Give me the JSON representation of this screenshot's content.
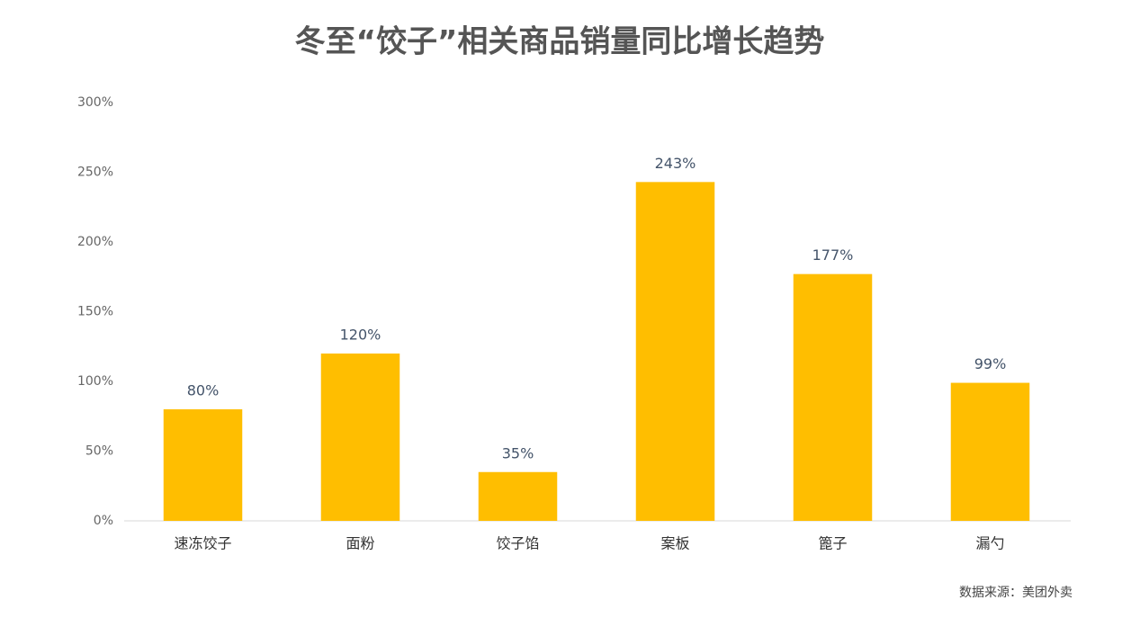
{
  "chart_data": {
    "type": "bar",
    "title": "冬至“饺子”相关商品销量同比增长趋势",
    "categories": [
      "速冻饺子",
      "面粉",
      "饺子馅",
      "案板",
      "篦子",
      "漏勺"
    ],
    "values": [
      80,
      120,
      35,
      243,
      177,
      99
    ],
    "value_labels": [
      "80%",
      "120%",
      "35%",
      "243%",
      "177%",
      "99%"
    ],
    "color": "#ffbe00",
    "ylim": [
      0,
      300
    ],
    "yticks": [
      {
        "value": 0,
        "label": "0%"
      },
      {
        "value": 50,
        "label": "50%"
      },
      {
        "value": 100,
        "label": "100%"
      },
      {
        "value": 150,
        "label": "150%"
      },
      {
        "value": 200,
        "label": "200%"
      },
      {
        "value": 250,
        "label": "250%"
      },
      {
        "value": 300,
        "label": "300%"
      }
    ],
    "grid": false,
    "source": "数据来源：美团外卖"
  }
}
